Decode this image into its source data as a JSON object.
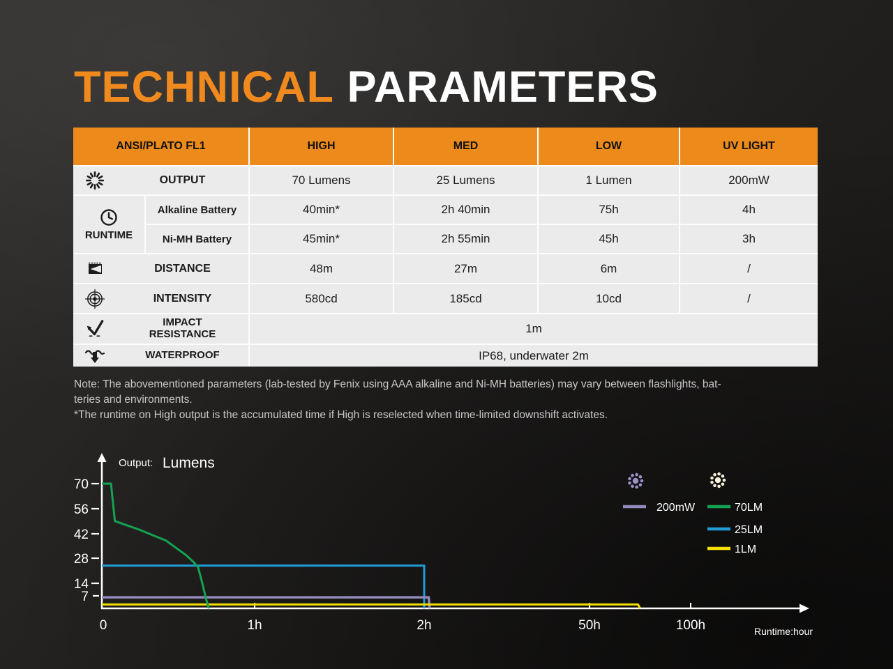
{
  "page": {
    "title_orange": "TECHNICAL",
    "title_white": "PARAMETERS"
  },
  "colors": {
    "accent_orange": "#EC8A1B",
    "table_row_bg": "#EBEBEB",
    "grid_line": "#FDFDFD",
    "note_text": "#C8C8C8",
    "chart_axis": "#FFFFFF",
    "uv_purple": "#938ABD",
    "legend_icon_cream": "#F6F1DB"
  },
  "table": {
    "header": {
      "col0": "ANSI/PLATO FL1",
      "cols": [
        "HIGH",
        "MED",
        "LOW",
        "UV LIGHT"
      ]
    },
    "rows": {
      "output": {
        "icon": "sun-rays-icon",
        "label": "OUTPUT",
        "values": [
          "70 Lumens",
          "25 Lumens",
          "1 Lumen",
          "200mW"
        ]
      },
      "runtime": {
        "icon": "clock-icon",
        "label": "RUNTIME",
        "alkaline": {
          "label": "Alkaline Battery",
          "values": [
            "40min*",
            "2h 40min",
            "75h",
            "4h"
          ]
        },
        "nimh": {
          "label": "Ni-MH Battery",
          "values": [
            "45min*",
            "2h 55min",
            "45h",
            "3h"
          ]
        }
      },
      "distance": {
        "icon": "beam-icon",
        "label": "DISTANCE",
        "values": [
          "48m",
          "27m",
          "6m",
          "/"
        ]
      },
      "intensity": {
        "icon": "target-icon",
        "label": "INTENSITY",
        "values": [
          "580cd",
          "185cd",
          "10cd",
          "/"
        ]
      },
      "impact": {
        "icon": "bounce-arrow-icon",
        "label_line1": "IMPACT",
        "label_line2": "RESISTANCE",
        "value": "1m"
      },
      "waterproof": {
        "icon": "water-arrow-icon",
        "label": "WATERPROOF",
        "value": "IP68, underwater 2m"
      }
    }
  },
  "notes": {
    "line1": "Note: The abovementioned parameters (lab-tested by Fenix using AAA alkaline and Ni-MH batteries) may vary between flashlights, bat-",
    "line2": "teries and environments.",
    "line3": "*The runtime on High output is the accumulated time if High is reselected when time-limited downshift activates."
  },
  "chart_data": {
    "type": "line",
    "title_prefix": "Output:",
    "title_unit": "Lumens",
    "xlabel": "Runtime:hour",
    "ylim": [
      0,
      78
    ],
    "y_ticks": [
      70,
      56,
      42,
      28,
      14,
      7
    ],
    "x_ticks": [
      "0",
      "1h",
      "2h",
      "50h",
      "100h"
    ],
    "x_tick_hours": [
      0,
      1,
      2,
      50,
      100
    ],
    "x_axis_note": "non-linear schematic hour axis",
    "grid": false,
    "legend_position": "upper-right",
    "legend": {
      "uv_group_icon": "uv-burst-icon",
      "light_group_icon": "light-burst-icon"
    },
    "series": [
      {
        "name": "70LM",
        "color": "#13A351",
        "points": [
          [
            0,
            70
          ],
          [
            0.06,
            70
          ],
          [
            0.085,
            49
          ],
          [
            0.25,
            44
          ],
          [
            0.42,
            38
          ],
          [
            0.55,
            30
          ],
          [
            0.6,
            26
          ],
          [
            0.63,
            23
          ],
          [
            0.655,
            15
          ],
          [
            0.68,
            6
          ],
          [
            0.7,
            0
          ]
        ]
      },
      {
        "name": "25LM",
        "color": "#209CD8",
        "points": [
          [
            0,
            24
          ],
          [
            2,
            24
          ],
          [
            2,
            0
          ]
        ]
      },
      {
        "name": "200mW",
        "color": "#938ABD",
        "points": [
          [
            0,
            6.2
          ],
          [
            3.3,
            6.2
          ],
          [
            3.6,
            0
          ]
        ]
      },
      {
        "name": "1LM",
        "color": "#F4E000",
        "points": [
          [
            0,
            2.2
          ],
          [
            74,
            2.2
          ],
          [
            75,
            0
          ]
        ]
      }
    ]
  }
}
